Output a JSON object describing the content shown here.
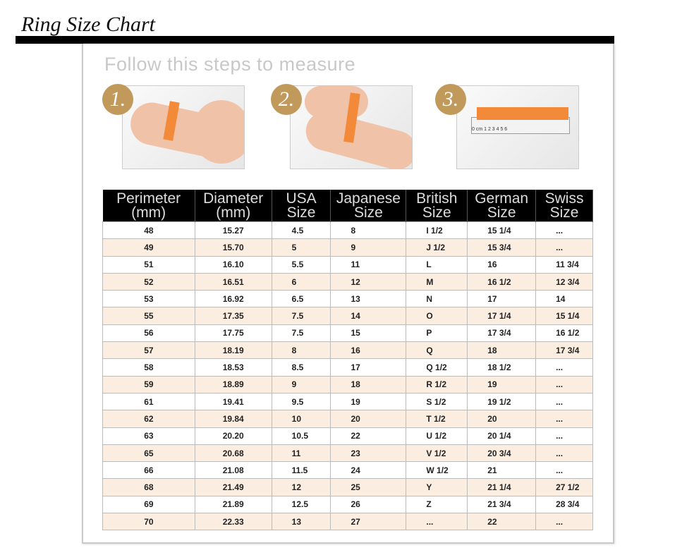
{
  "title": "Ring Size Chart",
  "instruction": "Follow this steps to measure",
  "steps": [
    {
      "badge": "1."
    },
    {
      "badge": "2."
    },
    {
      "badge": "3."
    }
  ],
  "ruler_label": "0 cm 1 2 3 4 5 6",
  "colors": {
    "badge": "#c19a5b",
    "header_bg": "#000000",
    "alt_row": "#fbeee0",
    "tape": "#f28a3a"
  },
  "table": {
    "headers": [
      [
        "Perimeter",
        "(mm)"
      ],
      [
        "Diameter",
        "(mm)"
      ],
      [
        "USA",
        "Size"
      ],
      [
        "Japanese",
        "Size"
      ],
      [
        "British",
        "Size"
      ],
      [
        "German",
        "Size"
      ],
      [
        "Swiss",
        "Size"
      ]
    ],
    "rows": [
      [
        "48",
        "15.27",
        "4.5",
        "8",
        "I 1/2",
        "15 1/4",
        "..."
      ],
      [
        "49",
        "15.70",
        "5",
        "9",
        "J 1/2",
        "15 3/4",
        "..."
      ],
      [
        "51",
        "16.10",
        "5.5",
        "11",
        "L",
        "16",
        "11 3/4"
      ],
      [
        "52",
        "16.51",
        "6",
        "12",
        "M",
        "16 1/2",
        "12 3/4"
      ],
      [
        "53",
        "16.92",
        "6.5",
        "13",
        "N",
        "17",
        "14"
      ],
      [
        "55",
        "17.35",
        "7.5",
        "14",
        "O",
        "17 1/4",
        "15 1/4"
      ],
      [
        "56",
        "17.75",
        "7.5",
        "15",
        "P",
        "17 3/4",
        "16 1/2"
      ],
      [
        "57",
        "18.19",
        "8",
        "16",
        "Q",
        "18",
        "17 3/4"
      ],
      [
        "58",
        "18.53",
        "8.5",
        "17",
        "Q 1/2",
        "18 1/2",
        "..."
      ],
      [
        "59",
        "18.89",
        "9",
        "18",
        "R 1/2",
        "19",
        "..."
      ],
      [
        "61",
        "19.41",
        "9.5",
        "19",
        "S 1/2",
        "19 1/2",
        "..."
      ],
      [
        "62",
        "19.84",
        "10",
        "20",
        "T 1/2",
        "20",
        "..."
      ],
      [
        "63",
        "20.20",
        "10.5",
        "22",
        "U 1/2",
        "20 1/4",
        "..."
      ],
      [
        "65",
        "20.68",
        "11",
        "23",
        "V 1/2",
        "20 3/4",
        "..."
      ],
      [
        "66",
        "21.08",
        "11.5",
        "24",
        "W 1/2",
        "21",
        "..."
      ],
      [
        "68",
        "21.49",
        "12",
        "25",
        "Y",
        "21 1/4",
        "27 1/2"
      ],
      [
        "69",
        "21.89",
        "12.5",
        "26",
        "Z",
        "21 3/4",
        "28 3/4"
      ],
      [
        "70",
        "22.33",
        "13",
        "27",
        "...",
        "22",
        "..."
      ]
    ]
  }
}
